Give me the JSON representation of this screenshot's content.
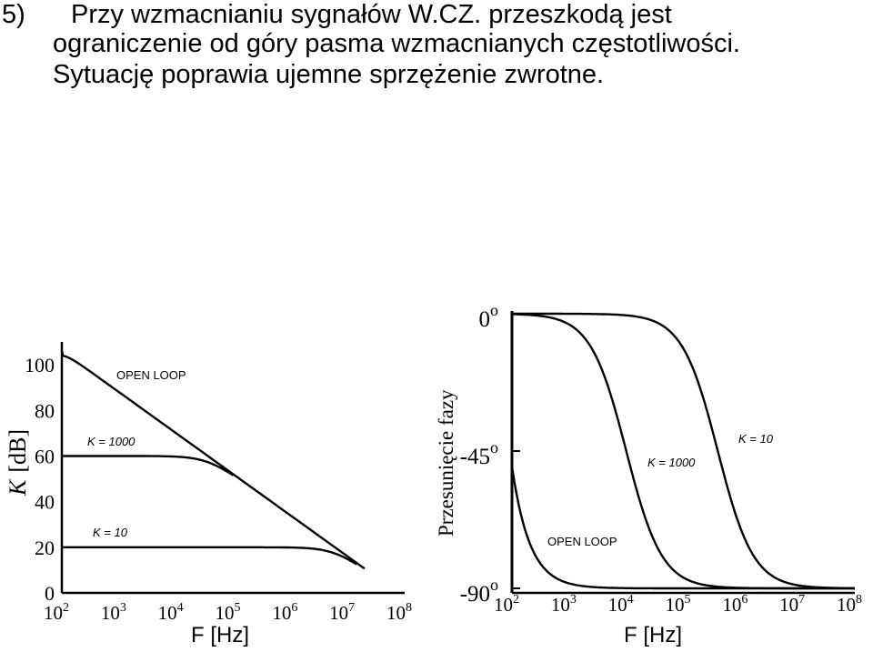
{
  "heading": {
    "number": "5)",
    "line1": "Przy wzmacnianiu sygnałów W.CZ. przeszkodą jest",
    "line2": "ograniczenie od góry pasma wzmacnianych częstotliwości.",
    "line3": "Sytuację poprawia ujemne sprzężenie zwrotne."
  },
  "chart_data": [
    {
      "type": "line",
      "title": "",
      "xlabel": "F [Hz]",
      "ylabel": "K [dB]",
      "xscale": "log",
      "xlim": [
        100,
        100000000
      ],
      "ylim": [
        0,
        110
      ],
      "x_ticks": [
        {
          "base": "10",
          "exp": "2",
          "value": 2
        },
        {
          "base": "10",
          "exp": "3",
          "value": 3
        },
        {
          "base": "10",
          "exp": "4",
          "value": 4
        },
        {
          "base": "10",
          "exp": "5",
          "value": 5
        },
        {
          "base": "10",
          "exp": "6",
          "value": 6
        },
        {
          "base": "10",
          "exp": "7",
          "value": 7
        },
        {
          "base": "10",
          "exp": "8",
          "value": 8
        }
      ],
      "y_ticks": [
        "0",
        "20",
        "40",
        "60",
        "80",
        "100"
      ],
      "series": [
        {
          "name": "OPEN LOOP",
          "x": [
            100,
            150,
            1000,
            10000,
            100000,
            1000000,
            10000000,
            20000000
          ],
          "y": [
            106,
            104,
            86,
            68,
            50,
            32,
            14,
            0
          ]
        },
        {
          "name": "K = 1000",
          "x": [
            100,
            1000,
            10000,
            30000,
            100000
          ],
          "y": [
            60,
            60,
            60,
            57,
            50
          ]
        },
        {
          "name": "K = 10",
          "x": [
            100,
            1000,
            10000,
            100000,
            1000000,
            3000000,
            10000000,
            15000000
          ],
          "y": [
            20,
            20,
            20,
            20,
            20,
            17,
            10,
            5
          ]
        }
      ]
    },
    {
      "type": "line",
      "title": "",
      "xlabel": "F [Hz]",
      "ylabel": "Przesunięcie fazy",
      "xscale": "log",
      "xlim": [
        100,
        100000000
      ],
      "ylim": [
        -90,
        0
      ],
      "x_ticks": [
        {
          "base": "10",
          "exp": "2",
          "value": 2
        },
        {
          "base": "10",
          "exp": "3",
          "value": 3
        },
        {
          "base": "10",
          "exp": "4",
          "value": 4
        },
        {
          "base": "10",
          "exp": "5",
          "value": 5
        },
        {
          "base": "10",
          "exp": "6",
          "value": 6
        },
        {
          "base": "10",
          "exp": "7",
          "value": 7
        },
        {
          "base": "10",
          "exp": "8",
          "value": 8
        }
      ],
      "y_ticks": [
        {
          "label": "0",
          "value": 0
        },
        {
          "label": "-45",
          "value": -45
        },
        {
          "label": "-90",
          "value": -90
        }
      ],
      "degree_symbol": "o",
      "series": [
        {
          "name": "OPEN LOOP",
          "corner_hz": 100
        },
        {
          "name": "K = 1000",
          "corner_hz": 10000
        },
        {
          "name": "K = 10",
          "corner_hz": 400000
        }
      ]
    }
  ]
}
